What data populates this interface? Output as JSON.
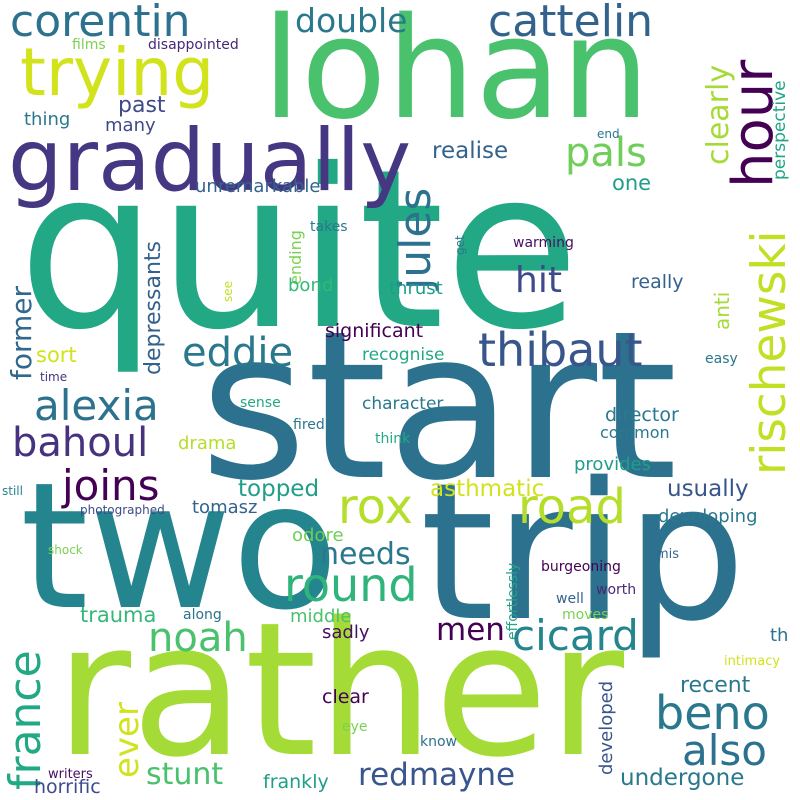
{
  "words": [
    {
      "text": "quite",
      "color": "#22a884"
    },
    {
      "text": "start",
      "color": "#2c728e"
    },
    {
      "text": "rather",
      "color": "#a5db36"
    },
    {
      "text": "trip",
      "color": "#2c728e"
    },
    {
      "text": "two",
      "color": "#25858e"
    },
    {
      "text": "lohan",
      "color": "#4ac16d"
    },
    {
      "text": "gradually",
      "color": "#453781"
    },
    {
      "text": "trying",
      "color": "#d2e21b"
    },
    {
      "text": "corentin",
      "color": "#2c728e"
    },
    {
      "text": "cattelin",
      "color": "#33638d"
    },
    {
      "text": "hour",
      "color": "#440154"
    },
    {
      "text": "rischewski",
      "color": "#c2df23"
    },
    {
      "text": "jules",
      "color": "#2c728e"
    },
    {
      "text": "thibaut",
      "color": "#39568c"
    },
    {
      "text": "eddie",
      "color": "#2a788e"
    },
    {
      "text": "alexia",
      "color": "#2c728e"
    },
    {
      "text": "bahoul",
      "color": "#46327e"
    },
    {
      "text": "joins",
      "color": "#440154"
    },
    {
      "text": "road",
      "color": "#b5de2b"
    },
    {
      "text": "rox",
      "color": "#b5de2b"
    },
    {
      "text": "round",
      "color": "#2fb47c"
    },
    {
      "text": "noah",
      "color": "#4ac16d"
    },
    {
      "text": "cicard",
      "color": "#25858e"
    },
    {
      "text": "beno",
      "color": "#2a788e"
    },
    {
      "text": "also",
      "color": "#2c728e"
    },
    {
      "text": "france",
      "color": "#22a884"
    },
    {
      "text": "ever",
      "color": "#d2e21b"
    },
    {
      "text": "redmayne",
      "color": "#39568c"
    },
    {
      "text": "stunt",
      "color": "#4ac16d"
    },
    {
      "text": "pals",
      "color": "#6ece58"
    },
    {
      "text": "hit",
      "color": "#3e4a89"
    },
    {
      "text": "clearly",
      "color": "#a5db36"
    },
    {
      "text": "double",
      "color": "#2a788e"
    },
    {
      "text": "men",
      "color": "#440154"
    },
    {
      "text": "needs",
      "color": "#2a788e"
    },
    {
      "text": "former",
      "color": "#31688e"
    },
    {
      "text": "depressants",
      "color": "#33638d"
    },
    {
      "text": "past",
      "color": "#3e4a89"
    },
    {
      "text": "realise",
      "color": "#33638d"
    },
    {
      "text": "topped",
      "color": "#1f9e89"
    },
    {
      "text": "asthmatic",
      "color": "#d2e21b"
    },
    {
      "text": "usually",
      "color": "#39568c"
    },
    {
      "text": "recent",
      "color": "#2a788e"
    },
    {
      "text": "undergone",
      "color": "#2a788e"
    },
    {
      "text": "sort",
      "color": "#d2e21b"
    },
    {
      "text": "trauma",
      "color": "#35b779"
    },
    {
      "text": "horrific",
      "color": "#3e4a89"
    },
    {
      "text": "frankly",
      "color": "#1f9e89"
    },
    {
      "text": "developed",
      "color": "#39568c"
    },
    {
      "text": "one",
      "color": "#1f9e89"
    },
    {
      "text": "anti",
      "color": "#a5db36"
    },
    {
      "text": "thing",
      "color": "#2a788e"
    },
    {
      "text": "many",
      "color": "#3e4a89"
    },
    {
      "text": "unremarkable",
      "color": "#33638d"
    },
    {
      "text": "films",
      "color": "#7ad151"
    },
    {
      "text": "disappointed",
      "color": "#482878"
    },
    {
      "text": "perspective",
      "color": "#20a486"
    },
    {
      "text": "end",
      "color": "#2a788e"
    },
    {
      "text": "takes",
      "color": "#2a788e"
    },
    {
      "text": "ending",
      "color": "#7ad151"
    },
    {
      "text": "get",
      "color": "#2a788e"
    },
    {
      "text": "warming",
      "color": "#471063"
    },
    {
      "text": "bond",
      "color": "#35b779"
    },
    {
      "text": "thrust",
      "color": "#1f9e89"
    },
    {
      "text": "really",
      "color": "#33638d"
    },
    {
      "text": "significant",
      "color": "#440154"
    },
    {
      "text": "recognise",
      "color": "#22a884"
    },
    {
      "text": "easy",
      "color": "#2a788e"
    },
    {
      "text": "time",
      "color": "#46327e"
    },
    {
      "text": "see",
      "color": "#c2df23"
    },
    {
      "text": "sense",
      "color": "#22a884"
    },
    {
      "text": "character",
      "color": "#2a788e"
    },
    {
      "text": "director",
      "color": "#2a788e"
    },
    {
      "text": "fired",
      "color": "#2a788e"
    },
    {
      "text": "common",
      "color": "#2a788e"
    },
    {
      "text": "drama",
      "color": "#b5de2b"
    },
    {
      "text": "think",
      "color": "#22a884"
    },
    {
      "text": "provides",
      "color": "#1f9e89"
    },
    {
      "text": "still",
      "color": "#26828e"
    },
    {
      "text": "photographed",
      "color": "#3e4a89"
    },
    {
      "text": "tomasz",
      "color": "#33638d"
    },
    {
      "text": "developing",
      "color": "#2a788e"
    },
    {
      "text": "shock",
      "color": "#7ad151"
    },
    {
      "text": "effortlessly",
      "color": "#20a486"
    },
    {
      "text": "odore",
      "color": "#6ece58"
    },
    {
      "text": "mis",
      "color": "#31688e"
    },
    {
      "text": "burgeoning",
      "color": "#440154"
    },
    {
      "text": "worth",
      "color": "#482878"
    },
    {
      "text": "well",
      "color": "#33638d"
    },
    {
      "text": "along",
      "color": "#2c728e"
    },
    {
      "text": "middle",
      "color": "#4ac16d"
    },
    {
      "text": "moves",
      "color": "#7ad151"
    },
    {
      "text": "th",
      "color": "#2c728e"
    },
    {
      "text": "sadly",
      "color": "#471063"
    },
    {
      "text": "intimacy",
      "color": "#d2e21b"
    },
    {
      "text": "clear",
      "color": "#440154"
    },
    {
      "text": "eye",
      "color": "#7ad151"
    },
    {
      "text": "know",
      "color": "#2c728e"
    },
    {
      "text": "writers",
      "color": "#471063"
    }
  ]
}
